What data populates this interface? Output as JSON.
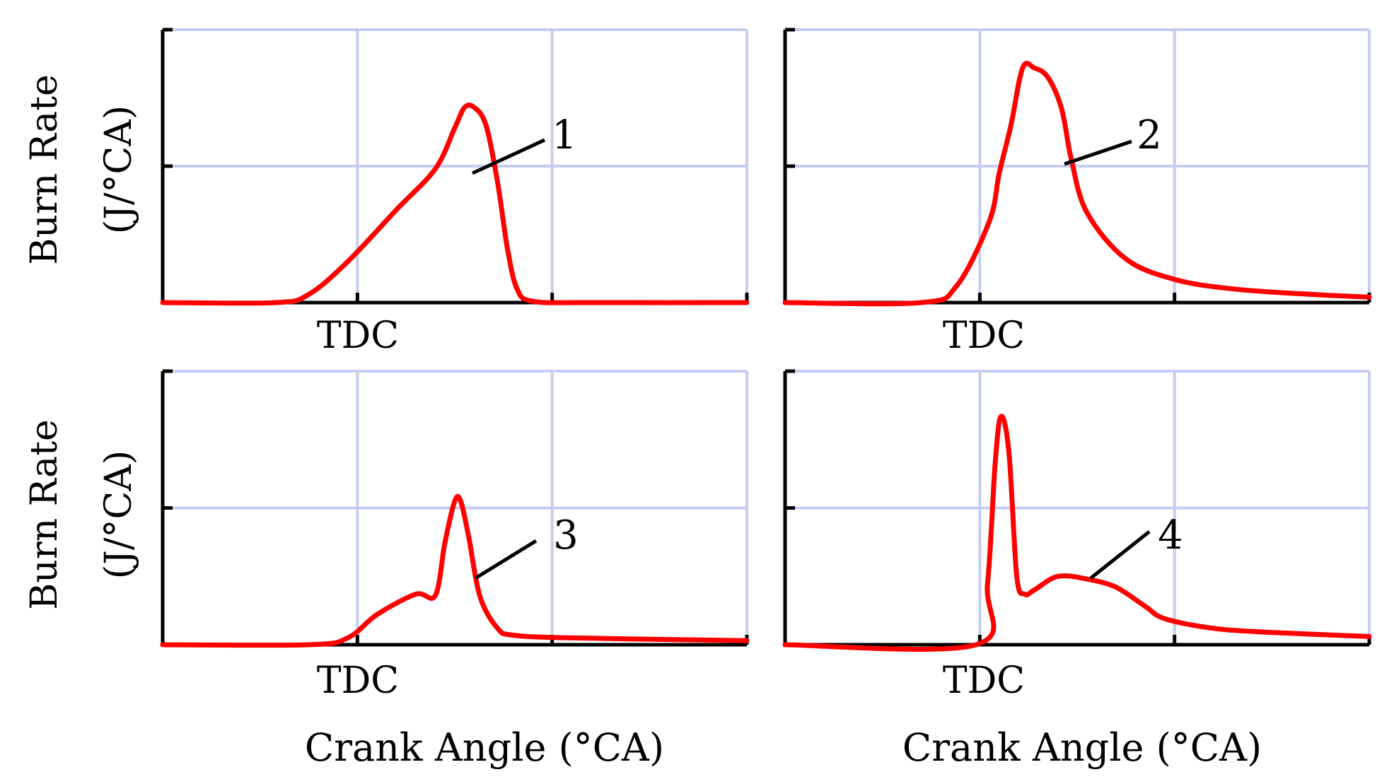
{
  "figure": {
    "ylabel_line1": "Burn Rate",
    "ylabel_line2": "(J/°CA)",
    "xlabel": "Crank Angle (°CA)",
    "x_tick_label": "TDC"
  },
  "colors": {
    "curve": "#ff0000",
    "grid": "#c5cdf0",
    "axis": "#000000",
    "callout": "#000000"
  },
  "chart_data": [
    {
      "type": "line",
      "series": [
        {
          "name": "1",
          "x": [
            -1,
            -0.42,
            -0.25,
            -0.05,
            0.2,
            0.4,
            0.5,
            0.55,
            0.6,
            0.66,
            0.72,
            0.77,
            0.82,
            0.9,
            1.2,
            2
          ],
          "y": [
            0,
            0,
            0.06,
            0.3,
            0.68,
            0.98,
            1.28,
            1.43,
            1.43,
            1.3,
            0.88,
            0.4,
            0.1,
            0.01,
            0,
            0
          ]
        }
      ],
      "callout_label": "1",
      "ylim": [
        0,
        2
      ],
      "xlim": [
        -1,
        2
      ],
      "grid": true
    },
    {
      "type": "line",
      "series": [
        {
          "name": "2",
          "x": [
            -1,
            -0.3,
            -0.12,
            0.05,
            0.1,
            0.16,
            0.22,
            0.28,
            0.35,
            0.42,
            0.47,
            0.55,
            0.75,
            1,
            1.3,
            1.7,
            2
          ],
          "y": [
            0,
            0,
            0.12,
            0.6,
            0.95,
            1.3,
            1.72,
            1.72,
            1.65,
            1.42,
            1.05,
            0.66,
            0.32,
            0.17,
            0.1,
            0.06,
            0.04
          ]
        }
      ],
      "callout_label": "2",
      "ylim": [
        0,
        2
      ],
      "xlim": [
        -1,
        2
      ],
      "grid": true
    },
    {
      "type": "line",
      "series": [
        {
          "name": "3",
          "x": [
            -1,
            -0.25,
            -0.05,
            0.1,
            0.3,
            0.4,
            0.45,
            0.5,
            0.53,
            0.57,
            0.63,
            0.72,
            0.8,
            1.1,
            2
          ],
          "y": [
            0,
            0,
            0.05,
            0.22,
            0.37,
            0.36,
            0.75,
            1.05,
            1.05,
            0.8,
            0.35,
            0.12,
            0.07,
            0.05,
            0.03
          ]
        }
      ],
      "callout_label": "3",
      "ylim": [
        0,
        2
      ],
      "xlim": [
        -1,
        2
      ],
      "grid": true
    },
    {
      "type": "line",
      "series": [
        {
          "name": "4",
          "x": [
            -1,
            -0.02,
            0.04,
            0.08,
            0.11,
            0.15,
            0.19,
            0.23,
            0.28,
            0.4,
            0.55,
            0.7,
            0.85,
            0.95,
            1.2,
            1.5,
            2
          ],
          "y": [
            0,
            0,
            0.45,
            1.35,
            1.67,
            1.4,
            0.5,
            0.37,
            0.4,
            0.5,
            0.48,
            0.42,
            0.28,
            0.19,
            0.12,
            0.09,
            0.06
          ]
        }
      ],
      "callout_label": "4",
      "ylim": [
        0,
        2
      ],
      "xlim": [
        -1,
        2
      ],
      "grid": true
    }
  ]
}
